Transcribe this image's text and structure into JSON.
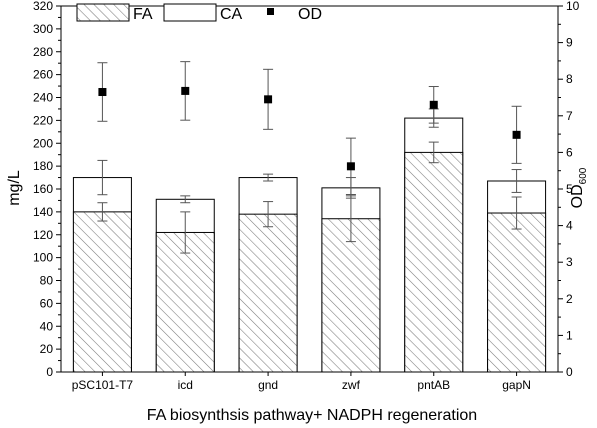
{
  "chart_data": {
    "type": "bar",
    "categories": [
      "pSC101-T7",
      "icd",
      "gnd",
      "zwf",
      "pntAB",
      "gapN"
    ],
    "series": [
      {
        "name": "FA",
        "values": [
          140,
          122,
          138,
          134,
          192,
          139
        ],
        "errors": [
          8,
          18,
          11,
          20,
          9,
          14
        ],
        "pattern": "hatched"
      },
      {
        "name": "CA",
        "values": [
          170,
          151,
          170,
          161,
          222,
          167
        ],
        "errors": [
          15,
          3,
          3,
          9,
          8,
          10
        ],
        "pattern": "open"
      },
      {
        "name": "OD",
        "values": [
          7.65,
          7.68,
          7.45,
          5.62,
          7.3,
          6.48
        ],
        "errors": [
          0.8,
          0.8,
          0.82,
          0.77,
          0.5,
          0.78
        ],
        "axis": "right",
        "marker": "square"
      }
    ],
    "xlabel": "FA biosynthsis pathway+ NADPH regeneration",
    "ylabel": "mg/L",
    "y2label_main": "OD",
    "y2label_sub": "600",
    "ylim": [
      0,
      320
    ],
    "y2lim": [
      0,
      10
    ],
    "yticks": [
      0,
      20,
      40,
      60,
      80,
      100,
      120,
      140,
      160,
      180,
      200,
      220,
      240,
      260,
      280,
      300,
      320
    ],
    "y2ticks": [
      0,
      1,
      2,
      3,
      4,
      5,
      6,
      7,
      8,
      9,
      10
    ],
    "legend_position": "top-left",
    "grid": false
  }
}
